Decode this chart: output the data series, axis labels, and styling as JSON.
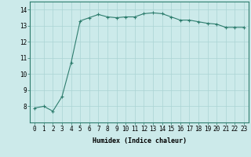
{
  "x": [
    0,
    1,
    2,
    3,
    4,
    5,
    6,
    7,
    8,
    9,
    10,
    11,
    12,
    13,
    14,
    15,
    16,
    17,
    18,
    19,
    20,
    21,
    22,
    23
  ],
  "y": [
    7.9,
    8.0,
    7.7,
    8.6,
    10.7,
    13.3,
    13.5,
    13.7,
    13.55,
    13.5,
    13.55,
    13.55,
    13.75,
    13.8,
    13.75,
    13.55,
    13.35,
    13.35,
    13.25,
    13.15,
    13.1,
    12.9,
    12.9,
    12.9
  ],
  "line_color": "#2e7d6e",
  "marker": "+",
  "marker_size": 3,
  "marker_edge_width": 0.8,
  "bg_color": "#cceaea",
  "grid_color": "#aad4d4",
  "xlabel": "Humidex (Indice chaleur)",
  "xlim": [
    -0.5,
    23.5
  ],
  "ylim": [
    7.0,
    14.5
  ],
  "yticks": [
    8,
    9,
    10,
    11,
    12,
    13,
    14
  ],
  "xticks": [
    0,
    1,
    2,
    3,
    4,
    5,
    6,
    7,
    8,
    9,
    10,
    11,
    12,
    13,
    14,
    15,
    16,
    17,
    18,
    19,
    20,
    21,
    22,
    23
  ],
  "xlabel_fontsize": 6,
  "tick_fontsize": 5.5,
  "line_width": 0.8,
  "spine_color": "#2e7d6e"
}
